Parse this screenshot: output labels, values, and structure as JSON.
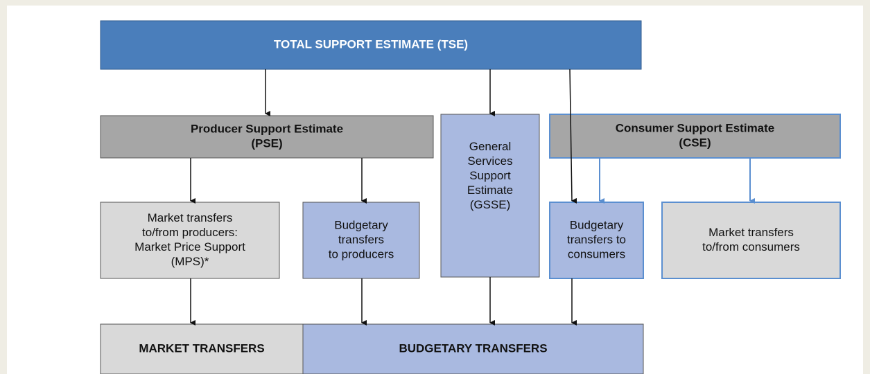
{
  "nodes": [
    {
      "id": "tse",
      "lines": [
        "TOTAL SUPPORT ESTIMATE (TSE)"
      ]
    },
    {
      "id": "pse",
      "lines": [
        "Producer Support Estimate",
        "(PSE)"
      ]
    },
    {
      "id": "gsse",
      "lines": [
        "General",
        "Services",
        "Support",
        "Estimate",
        "(GSSE)"
      ]
    },
    {
      "id": "cse",
      "lines": [
        "Consumer Support Estimate",
        "(CSE)"
      ]
    },
    {
      "id": "mps",
      "lines": [
        "Market transfers",
        "to/from producers:",
        "Market Price Support",
        "(MPS)*"
      ]
    },
    {
      "id": "btp",
      "lines": [
        "Budgetary",
        "transfers",
        "to producers"
      ]
    },
    {
      "id": "btc",
      "lines": [
        "Budgetary",
        "transfers to",
        "consumers"
      ]
    },
    {
      "id": "mtc",
      "lines": [
        "Market transfers",
        "to/from consumers"
      ]
    },
    {
      "id": "mt",
      "lines": [
        "MARKET TRANSFERS"
      ]
    },
    {
      "id": "bt",
      "lines": [
        "BUDGETARY TRANSFERS"
      ]
    }
  ]
}
